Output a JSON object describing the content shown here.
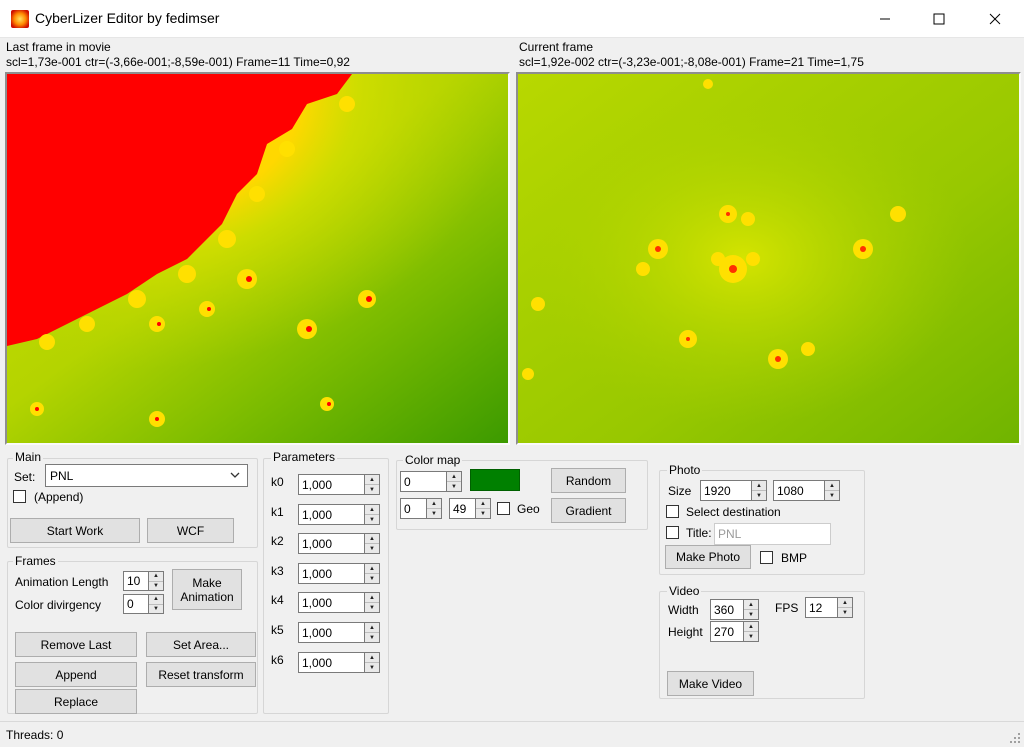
{
  "window": {
    "title": "CyberLizer Editor by fedimser",
    "minimize_glyph": "—",
    "maximize_glyph": "☐",
    "close_glyph": "✕"
  },
  "last_frame": {
    "label": "Last frame in movie",
    "info": "scl=1,73e-001 ctr=(-3,66e-001;-8,59e-001) Frame=11 Time=0,92"
  },
  "current_frame": {
    "label": "Current frame",
    "info": "scl=1,92e-002 ctr=(-3,23e-001;-8,08e-001) Frame=21 Time=1,75"
  },
  "main": {
    "title": "Main",
    "set_label": "Set:",
    "set_value": "PNL",
    "append_label": "(Append)",
    "start_work": "Start Work",
    "wcf": "WCF"
  },
  "frames": {
    "title": "Frames",
    "animation_length_label": "Animation Length",
    "animation_length_value": "10",
    "color_divergency_label": "Color divirgency",
    "color_divergency_value": "0",
    "make_animation_line1": "Make",
    "make_animation_line2": "Animation",
    "remove_last": "Remove Last",
    "set_area": "Set Area...",
    "append": "Append",
    "reset_transform": "Reset transform",
    "replace": "Replace"
  },
  "parameters": {
    "title": "Parameters",
    "items": [
      {
        "label": "k0",
        "value": "1,000"
      },
      {
        "label": "k1",
        "value": "1,000"
      },
      {
        "label": "k2",
        "value": "1,000"
      },
      {
        "label": "k3",
        "value": "1,000"
      },
      {
        "label": "k4",
        "value": "1,000"
      },
      {
        "label": "k5",
        "value": "1,000"
      },
      {
        "label": "k6",
        "value": "1,000"
      }
    ]
  },
  "color_map": {
    "title": "Color map",
    "index_value": "0",
    "swatch_color": "#008000",
    "from_value": "0",
    "to_value": "49",
    "geo_label": "Geo",
    "random": "Random",
    "gradient": "Gradient"
  },
  "photo": {
    "title": "Photo",
    "size_label": "Size",
    "width_value": "1920",
    "height_value": "1080",
    "select_destination": "Select destination",
    "title_label": "Title:",
    "title_placeholder": "PNL",
    "make_photo": "Make Photo",
    "bmp_label": "BMP"
  },
  "video": {
    "title": "Video",
    "width_label": "Width",
    "width_value": "360",
    "height_label": "Height",
    "height_value": "270",
    "fps_label": "FPS",
    "fps_value": "12",
    "make_video": "Make Video"
  },
  "status": {
    "threads": "Threads: 0"
  },
  "colors": {
    "fractal_red": "#ff0000",
    "fractal_yellow": "#ffe000",
    "fractal_lime": "#b8d800",
    "fractal_green": "#3c9a00"
  }
}
